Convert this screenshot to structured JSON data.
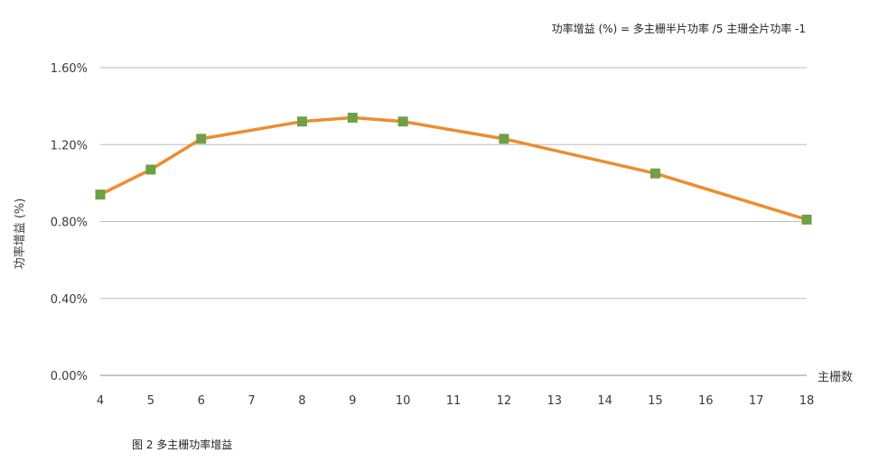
{
  "chart_data": {
    "type": "line",
    "title": "",
    "annotation": "功率增益 (%) = 多主栅半片功率 /5 主珊全片功率 -1",
    "xlabel": "主栅数",
    "ylabel": "功率增益 (%)",
    "x_ticks": [
      "4",
      "5",
      "6",
      "7",
      "8",
      "9",
      "10",
      "11",
      "12",
      "13",
      "14",
      "15",
      "16",
      "17",
      "18"
    ],
    "y_ticks": [
      "0.00%",
      "0.40%",
      "0.80%",
      "1.20%",
      "1.60%"
    ],
    "ylim": [
      0,
      1.6
    ],
    "xlim": [
      4,
      18
    ],
    "grid": true,
    "series": [
      {
        "x": [
          4,
          5,
          6,
          8,
          9,
          10,
          12,
          15,
          18
        ],
        "y": [
          0.94,
          1.07,
          1.23,
          1.32,
          1.34,
          1.32,
          1.23,
          1.05,
          0.81
        ]
      }
    ]
  },
  "caption": "图 2 多主栅功率增益",
  "colors": {
    "line": "#ee8c2c",
    "marker": "#6ea046",
    "grid": "#bdbdbd",
    "axis": "#8c8c8c"
  }
}
